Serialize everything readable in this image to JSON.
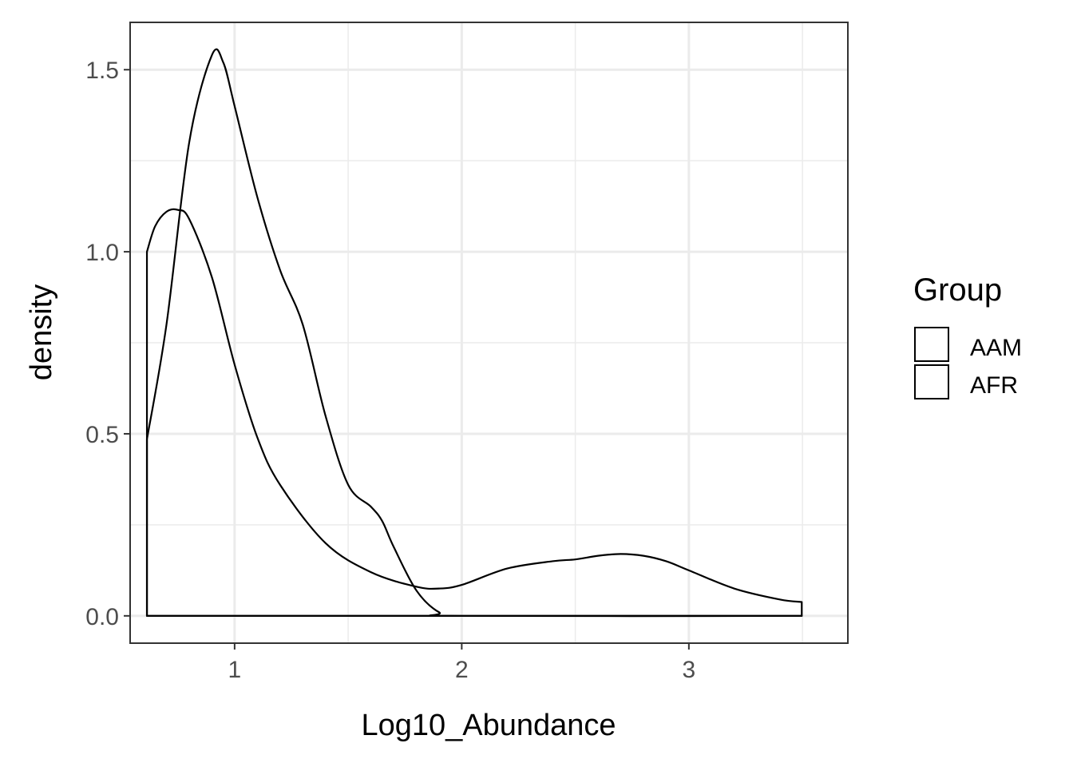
{
  "chart_data": {
    "type": "area",
    "xlabel": "Log10_Abundance",
    "ylabel": "density",
    "xlim": [
      0.54,
      3.7
    ],
    "ylim": [
      -0.075,
      1.63
    ],
    "x_ticks": [
      1,
      2,
      3
    ],
    "x_tick_labels": [
      "1",
      "2",
      "3"
    ],
    "y_ticks": [
      0,
      0.5,
      1,
      1.5
    ],
    "y_tick_labels": [
      "0.0",
      "0.5",
      "1.0",
      "1.5"
    ],
    "grid": true,
    "legend": {
      "title": "Group",
      "position": "right",
      "entries": [
        "AAM",
        "AFR"
      ]
    },
    "colors": {
      "line": "#000000",
      "grid": "#ebebeb",
      "panel_border": "#333333",
      "tick_label": "#4d4d4d"
    },
    "series": [
      {
        "name": "AAM",
        "x": [
          0.614,
          0.7,
          0.8,
          0.9,
          0.95,
          1.0,
          1.1,
          1.2,
          1.3,
          1.4,
          1.5,
          1.6,
          1.65,
          1.7,
          1.8,
          1.9,
          2.0,
          3.497
        ],
        "values": [
          0.485,
          0.8,
          1.3,
          1.54,
          1.52,
          1.4,
          1.15,
          0.95,
          0.8,
          0.55,
          0.36,
          0.3,
          0.26,
          0.19,
          0.07,
          0.01,
          0.0,
          0.0
        ]
      },
      {
        "name": "AFR",
        "x": [
          0.614,
          0.65,
          0.7,
          0.75,
          0.8,
          0.9,
          1.0,
          1.1,
          1.2,
          1.4,
          1.6,
          1.8,
          1.9,
          2.0,
          2.2,
          2.4,
          2.5,
          2.6,
          2.7,
          2.8,
          2.9,
          3.0,
          3.2,
          3.4,
          3.497
        ],
        "values": [
          1.0,
          1.07,
          1.11,
          1.115,
          1.09,
          0.93,
          0.69,
          0.49,
          0.36,
          0.2,
          0.12,
          0.08,
          0.075,
          0.085,
          0.13,
          0.15,
          0.155,
          0.165,
          0.17,
          0.165,
          0.15,
          0.125,
          0.075,
          0.045,
          0.038
        ]
      }
    ]
  }
}
